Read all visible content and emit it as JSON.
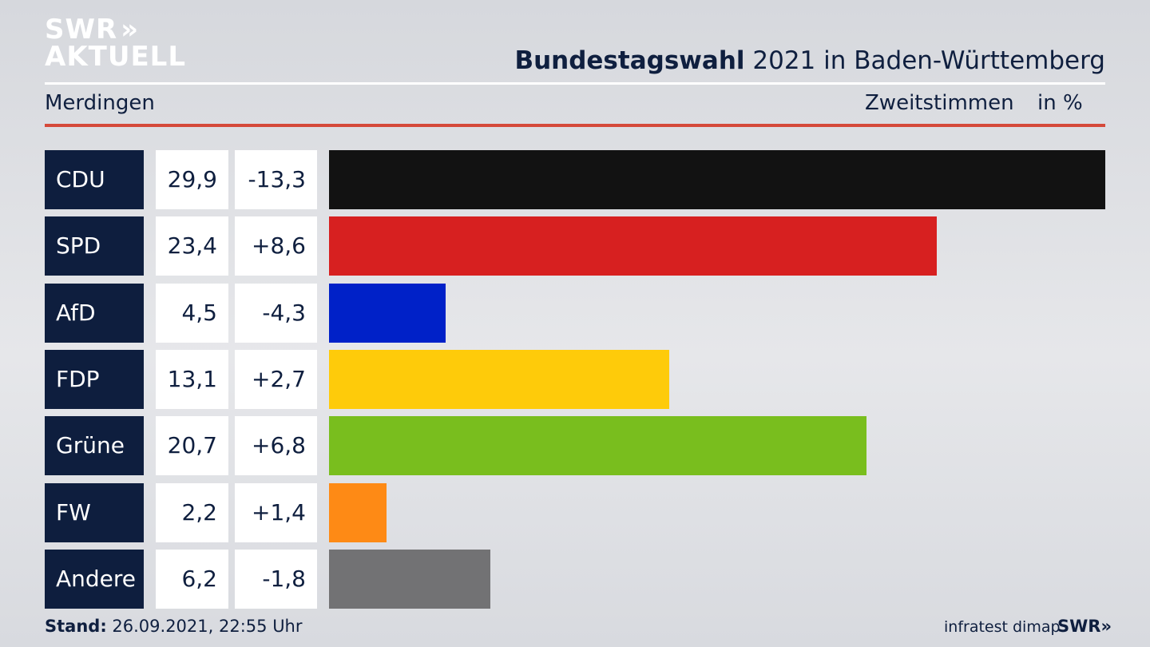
{
  "chart_data": {
    "type": "bar",
    "logo": [
      "SWR",
      "AKTUELL"
    ],
    "title_bold": "Bundestagswahl",
    "title": "2021 in Baden-Württemberg",
    "subtitle": "Merdingen",
    "measure": "Zweitstimmen",
    "unit": "in %",
    "categories": [
      "CDU",
      "SPD",
      "AfD",
      "FDP",
      "Grüne",
      "FW",
      "Andere"
    ],
    "values": [
      29.9,
      23.4,
      4.5,
      13.1,
      20.7,
      2.2,
      6.2
    ],
    "value_labels": [
      "29,9",
      "23,4",
      "4,5",
      "13,1",
      "20,7",
      "2,2",
      "6,2"
    ],
    "change_values": [
      -13.3,
      8.6,
      -4.3,
      2.7,
      6.8,
      1.4,
      -1.8
    ],
    "change_labels": [
      "-13,3",
      "+8,6",
      "-4,3",
      "+2,7",
      "+6,8",
      "+1,4",
      "-1,8"
    ],
    "colors": [
      "#121212",
      "#d72020",
      "#0021c8",
      "#fecb0a",
      "#79be1e",
      "#fe8a15",
      "#727274"
    ],
    "footer_label": "Stand:",
    "footer_date": "26.09.2021, 22:55 Uhr",
    "source": "infratest dimap",
    "footer_logo": "SWR"
  }
}
